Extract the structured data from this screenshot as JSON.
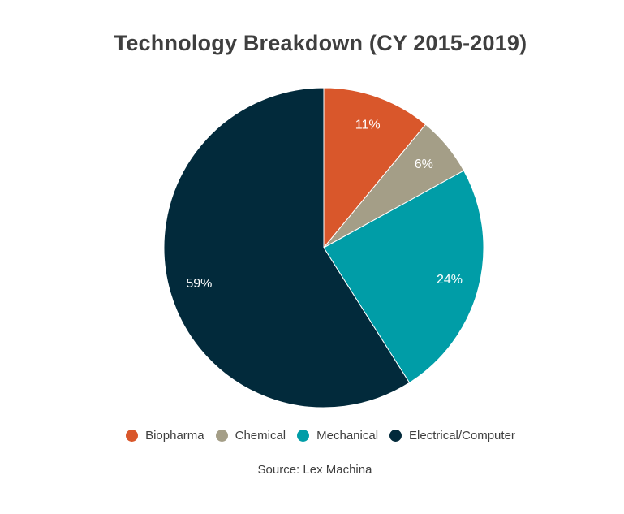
{
  "chart_data": {
    "type": "pie",
    "title": "Technology Breakdown (CY 2015-2019)",
    "slices": [
      {
        "name": "Biopharma",
        "value": 11,
        "label": "11%",
        "color": "#d9572b"
      },
      {
        "name": "Chemical",
        "value": 6,
        "label": "6%",
        "color": "#a49e87"
      },
      {
        "name": "Mechanical",
        "value": 24,
        "label": "24%",
        "color": "#009da7"
      },
      {
        "name": "Electrical/Computer",
        "value": 59,
        "label": "59%",
        "color": "#022a3b"
      }
    ],
    "legend_position": "bottom",
    "start_angle": "top",
    "direction": "clockwise"
  },
  "source": "Source: Lex Machina"
}
